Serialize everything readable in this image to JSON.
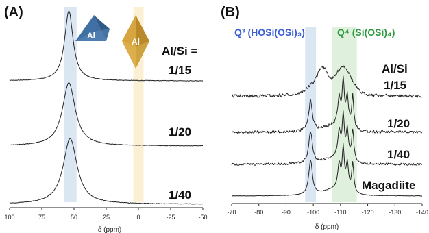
{
  "panel_a": {
    "label": "(A)",
    "ratio_header": "Al/Si =",
    "ratios": [
      "1/15",
      "1/20",
      "1/40"
    ],
    "xlabel": "δ (ppm)",
    "xticks": [
      "100",
      "75",
      "50",
      "25",
      "0",
      "-25",
      "-50"
    ],
    "tetrahedral_icon": "Al",
    "octahedral_icon": "Al",
    "colors": {
      "tetrahedral": "#4c7cad",
      "octahedral": "#d9a845",
      "band_tetra": "#dbe6f3",
      "band_octa": "#fbf0d4"
    }
  },
  "panel_b": {
    "label": "(B)",
    "q3_label": "Q³ (HOSi(OSi)₃)",
    "q4_label": "Q⁴ (Si(OSi)₄)",
    "ratio_header": "Al/Si",
    "ratios": [
      "1/15",
      "1/20",
      "1/40"
    ],
    "reference": "Magadiite",
    "xlabel": "δ (ppm)",
    "xticks": [
      "-70",
      "-80",
      "-90",
      "-100",
      "-110",
      "-120",
      "-130",
      "-140"
    ],
    "colors": {
      "q3": "#3a5fd0",
      "q4": "#2e9a3e",
      "band_q3": "#dbe6f3",
      "band_q4": "#dff0dc"
    }
  },
  "chart_data": [
    {
      "type": "line",
      "title": "(A)",
      "xlabel": "δ (ppm)",
      "xlim": [
        100,
        -50
      ],
      "x_reversed": true,
      "series": [
        {
          "name": "1/15",
          "peak_ppm": 54,
          "fwhm_ppm": 8,
          "rel_height": 1.0
        },
        {
          "name": "1/20",
          "peak_ppm": 54,
          "fwhm_ppm": 12,
          "rel_height": 1.0
        },
        {
          "name": "1/40",
          "peak_ppm": 53,
          "fwhm_ppm": 13,
          "rel_height": 1.0
        }
      ],
      "highlight_bands_ppm": [
        [
          58,
          48
        ],
        [
          4,
          -4
        ]
      ]
    },
    {
      "type": "line",
      "title": "(B)",
      "xlabel": "δ (ppm)",
      "xlim": [
        -70,
        -140
      ],
      "x_reversed": true,
      "series": [
        {
          "name": "1/15",
          "peaks_ppm": [
            -99,
            -104,
            -111,
            -113
          ],
          "note": "broad Q3 + Q4"
        },
        {
          "name": "1/20",
          "peaks_ppm": [
            -99,
            -109.5,
            -111,
            -112.5,
            -114.5
          ]
        },
        {
          "name": "1/40",
          "peaks_ppm": [
            -99,
            -109.5,
            -111,
            -112.5,
            -114.5
          ]
        },
        {
          "name": "Magadiite",
          "peaks_ppm": [
            -99,
            -109.5,
            -111,
            -112.5,
            -114.5
          ]
        }
      ],
      "highlight_bands_ppm": [
        [
          -97,
          -101
        ],
        [
          -107,
          -116
        ]
      ]
    }
  ]
}
